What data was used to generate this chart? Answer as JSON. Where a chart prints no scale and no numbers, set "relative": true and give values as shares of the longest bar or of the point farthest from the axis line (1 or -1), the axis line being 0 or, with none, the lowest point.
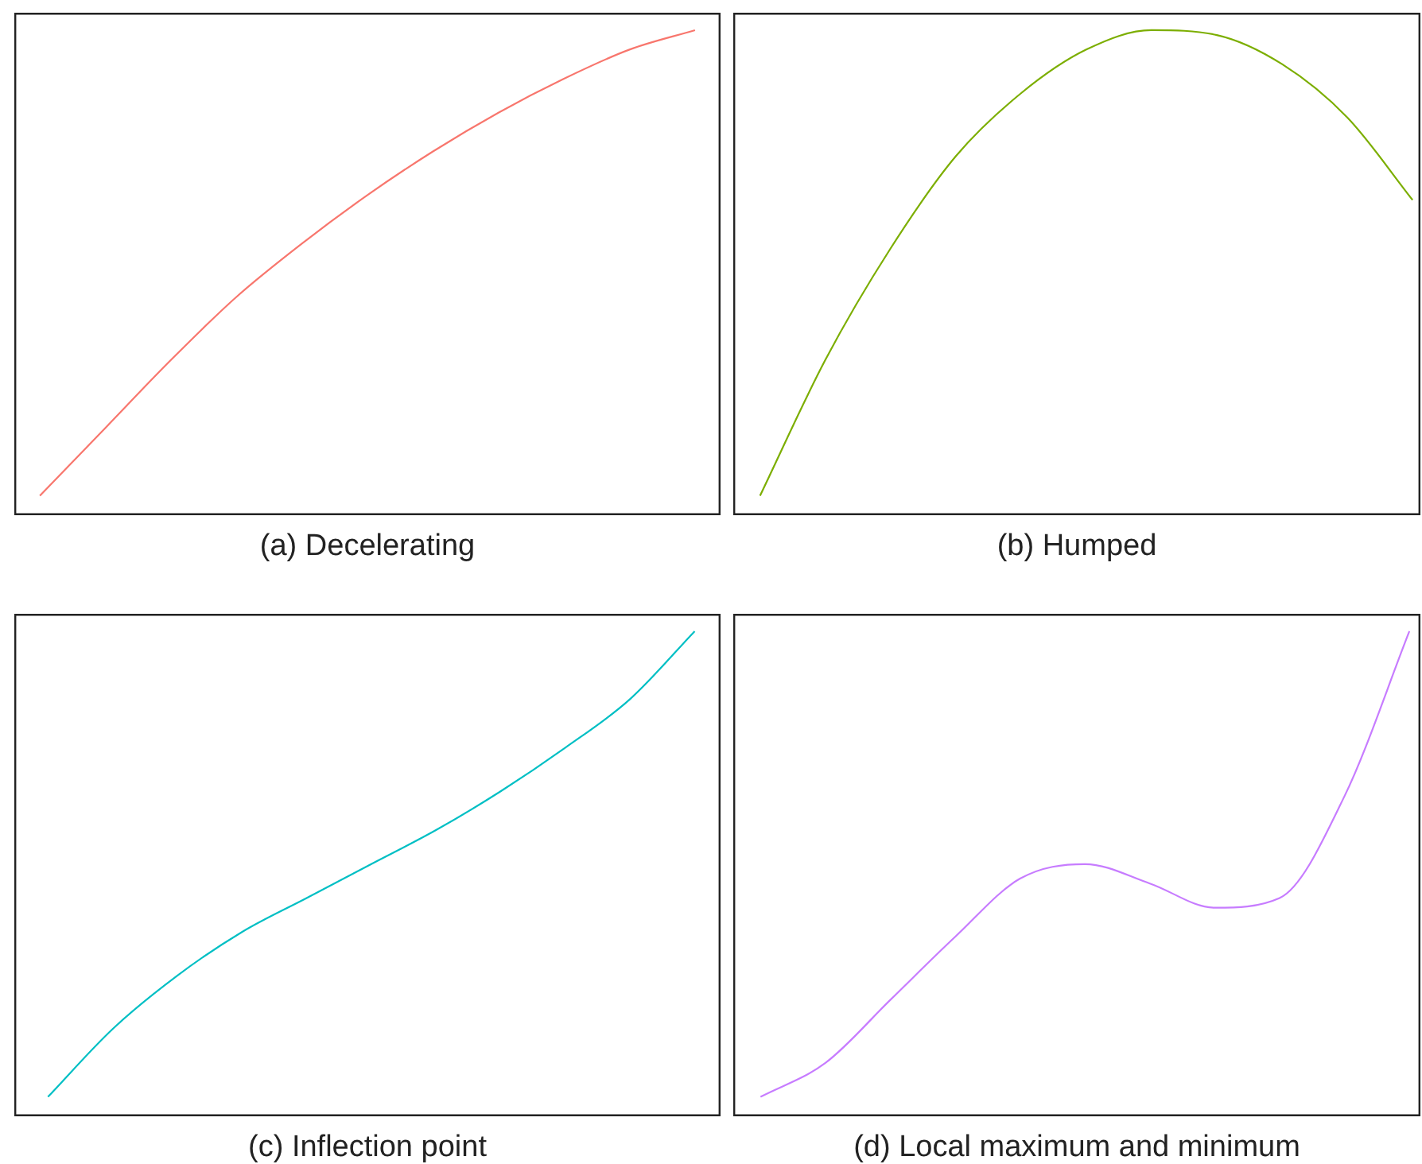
{
  "chart_data": [
    {
      "type": "line",
      "title": "(a) Decelerating",
      "relative": true,
      "color": "#f8766d",
      "categories": [
        null,
        null,
        null,
        null,
        null,
        null,
        null,
        null,
        null,
        null,
        null
      ],
      "values": [
        0.04,
        0.18,
        0.32,
        0.45,
        0.56,
        0.66,
        0.75,
        0.83,
        0.9,
        0.96,
        1
      ]
    },
    {
      "type": "line",
      "title": "(b) Humped",
      "relative": true,
      "color": "#7cae00",
      "categories": [
        null,
        null,
        null,
        null,
        null,
        null,
        null,
        null,
        null,
        null,
        null
      ],
      "values": [
        0.04,
        0.32,
        0.55,
        0.74,
        0.87,
        0.96,
        1,
        0.99,
        0.93,
        0.82,
        0.65
      ]
    },
    {
      "type": "line",
      "title": "(c) Inflection point",
      "relative": true,
      "color": "#00bfc4",
      "categories": [
        null,
        null,
        null,
        null,
        null,
        null,
        null,
        null,
        null,
        null,
        null
      ],
      "values": [
        0.04,
        0.18,
        0.29,
        0.38,
        0.45,
        0.52,
        0.59,
        0.67,
        0.76,
        0.86,
        1
      ]
    },
    {
      "type": "line",
      "title": "(d) Local maximum and minimum",
      "relative": true,
      "color": "#c77cff",
      "categories": [
        null,
        null,
        null,
        null,
        null,
        null,
        null,
        null,
        null,
        null,
        null
      ],
      "values": [
        0.04,
        0.11,
        0.24,
        0.37,
        0.49,
        0.52,
        0.48,
        0.43,
        0.45,
        0.66,
        1
      ]
    }
  ]
}
